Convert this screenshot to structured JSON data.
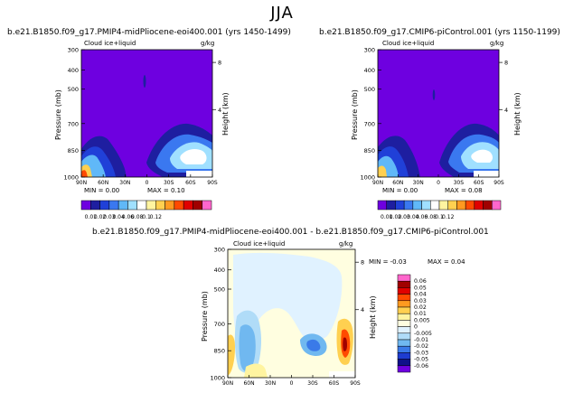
{
  "season": "JJA",
  "chart_data": [
    {
      "type": "heatmap",
      "title": "b.e21.B1850.f09_g17.PMIP4-midPliocene-eoi400.001 (yrs 1450-1499)",
      "left_string": "Cloud ice+liquid",
      "right_string": "g/kg",
      "ylabel": "Pressure (mb)",
      "right_ylabel": "Height (km)",
      "pressure_ticks": [
        "300",
        "400",
        "500",
        "700",
        "850",
        "1000"
      ],
      "height_ticks": [
        "8",
        "4"
      ],
      "lat_ticks": [
        "90N",
        "60N",
        "30N",
        "0",
        "30S",
        "60S",
        "90S"
      ],
      "min_text": "MIN =   0.00",
      "max_text": "MAX =   0.10",
      "colorbar_labels": [
        "0.01",
        "0.02",
        "0.03",
        "0.04",
        "0.06",
        "0.08",
        "0.1",
        "0.12"
      ],
      "colorbar_colors": [
        "#6e00e0",
        "#1e1ea0",
        "#2040d8",
        "#3a78f0",
        "#60b8f8",
        "#a0e0ff",
        "#ffffff",
        "#fff4a0",
        "#ffd050",
        "#ff9a20",
        "#ff4a00",
        "#e00000",
        "#a00000",
        "#ff66cc"
      ]
    },
    {
      "type": "heatmap",
      "title": "b.e21.B1850.f09_g17.CMIP6-piControl.001 (yrs 1150-1199)",
      "left_string": "Cloud ice+liquid",
      "right_string": "g/kg",
      "ylabel": "Pressure (mb)",
      "right_ylabel": "Height (km)",
      "pressure_ticks": [
        "300",
        "400",
        "500",
        "700",
        "850",
        "1000"
      ],
      "height_ticks": [
        "8",
        "4"
      ],
      "lat_ticks": [
        "90N",
        "60N",
        "30N",
        "0",
        "30S",
        "60S",
        "90S"
      ],
      "min_text": "MIN =   0.00",
      "max_text": "MAX =   0.08",
      "colorbar_labels": [
        "0.01",
        "0.02",
        "0.03",
        "0.04",
        "0.06",
        "0.08",
        "0.1",
        "0.12"
      ],
      "colorbar_colors": [
        "#6e00e0",
        "#1e1ea0",
        "#2040d8",
        "#3a78f0",
        "#60b8f8",
        "#a0e0ff",
        "#ffffff",
        "#fff4a0",
        "#ffd050",
        "#ff9a20",
        "#ff4a00",
        "#e00000",
        "#a00000",
        "#ff66cc"
      ]
    },
    {
      "type": "heatmap",
      "title": "b.e21.B1850.f09_g17.PMIP4-midPliocene-eoi400.001  -  b.e21.B1850.f09_g17.CMIP6-piControl.001",
      "left_string": "Cloud ice+liquid",
      "right_string": "g/kg",
      "ylabel": "Pressure (mb)",
      "right_ylabel": "Height (km)",
      "pressure_ticks": [
        "300",
        "400",
        "500",
        "700",
        "850",
        "1000"
      ],
      "height_ticks": [
        "8",
        "4"
      ],
      "lat_ticks": [
        "90N",
        "60N",
        "30N",
        "0",
        "30S",
        "60S",
        "90S"
      ],
      "min_text": "MIN =   -0.03",
      "max_text": "MAX =    0.04",
      "colorbar_labels": [
        "0.06",
        "0.05",
        "0.04",
        "0.03",
        "0.02",
        "0.01",
        "0.005",
        "0",
        "-0.005",
        "-0.01",
        "-0.02",
        "-0.03",
        "-0.05",
        "-0.06"
      ],
      "colorbar_colors": [
        "#ff66cc",
        "#a00000",
        "#e00000",
        "#ff4a00",
        "#ff9a20",
        "#ffd050",
        "#fff4a0",
        "#fffee0",
        "#e0f2ff",
        "#b0dcf8",
        "#70b8f0",
        "#3a7ae8",
        "#1e3cd0",
        "#10108a",
        "#6e00e0"
      ]
    }
  ]
}
